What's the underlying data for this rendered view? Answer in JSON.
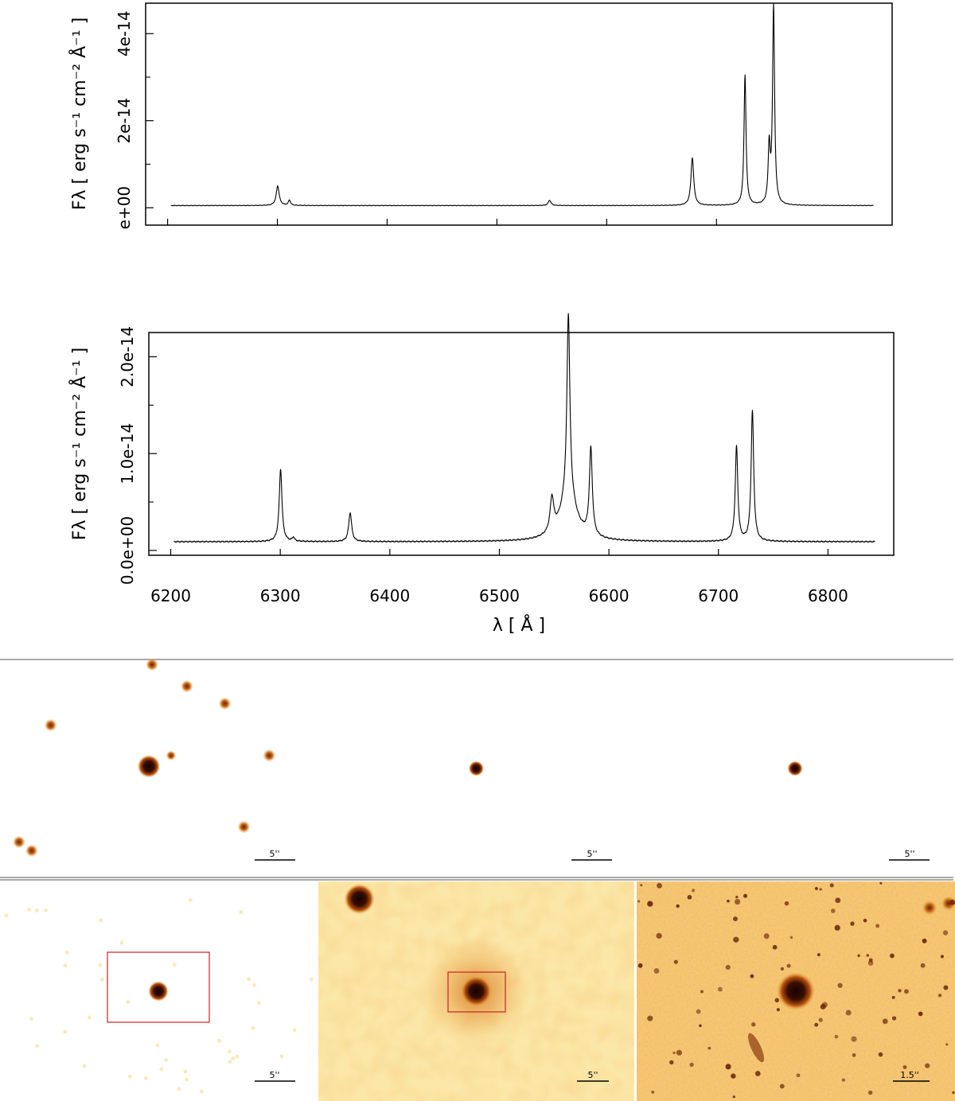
{
  "chart_data": [
    {
      "type": "line",
      "panel": "spectrum-top",
      "ylabel": "Fλ [ erg s⁻¹ cm⁻² Å⁻¹ ]",
      "xlim": [
        6180,
        6860
      ],
      "ylim": [
        -4e-15,
        4.7e-14
      ],
      "y_tick_labels": [
        "e+00",
        "2e-14",
        "4e-14"
      ],
      "y_tick_values": [
        0,
        2e-14,
        4e-14
      ],
      "y_minor_tick_values": [
        1e-14,
        3e-14
      ],
      "x_tick_values": [
        6200,
        6300,
        6400,
        6500,
        6600,
        6700
      ],
      "x_tick_labels_shown": false,
      "continuum": 5e-16,
      "lines": [
        {
          "center": 6300.3,
          "peak": 4.5e-15,
          "width": 1.6
        },
        {
          "center": 6311,
          "peak": 1.2e-15,
          "width": 1.2
        },
        {
          "center": 6548,
          "peak": 1.2e-15,
          "width": 1.5
        },
        {
          "center": 6678,
          "peak": 1.1e-14,
          "width": 1.5
        },
        {
          "center": 6726,
          "peak": 3e-14,
          "width": 1.1
        },
        {
          "center": 6748,
          "peak": 1.3e-14,
          "width": 1.1
        },
        {
          "center": 6752,
          "peak": 4.55e-14,
          "width": 1.1
        }
      ]
    },
    {
      "type": "line",
      "panel": "spectrum-bottom",
      "xlabel": "λ [ Å ]",
      "ylabel": "Fλ [ erg s⁻¹ cm⁻² Å⁻¹ ]",
      "xlim": [
        6180,
        6860
      ],
      "ylim": [
        -5e-16,
        2.25e-14
      ],
      "y_tick_labels": [
        "0.0e+00",
        "1.0e-14",
        "2.0e-14"
      ],
      "y_tick_values": [
        0,
        1e-14,
        2e-14
      ],
      "y_minor_tick_values": [
        5e-15,
        1.5e-14
      ],
      "x_tick_labels": [
        "6200",
        "6300",
        "6400",
        "6500",
        "6600",
        "6700",
        "6800"
      ],
      "x_tick_values": [
        6200,
        6300,
        6400,
        6500,
        6600,
        6700,
        6800
      ],
      "continuum": 9e-16,
      "lines": [
        {
          "center": 6300.3,
          "peak": 7.5e-15,
          "width": 1.5
        },
        {
          "center": 6312,
          "peak": 4e-16,
          "width": 1.2
        },
        {
          "center": 6363.8,
          "peak": 3e-15,
          "width": 1.6
        },
        {
          "center": 6548,
          "peak": 3.5e-15,
          "width": 2.0
        },
        {
          "center": 6563,
          "peak": 1.9e-14,
          "width": 1.6
        },
        {
          "center": 6563,
          "peak": 4.5e-15,
          "width": 9.0
        },
        {
          "center": 6583.5,
          "peak": 9e-15,
          "width": 1.6
        },
        {
          "center": 6716.5,
          "peak": 9.8e-15,
          "width": 1.4
        },
        {
          "center": 6731,
          "peak": 1.35e-14,
          "width": 1.4
        }
      ]
    }
  ],
  "images": [
    {
      "name": "image-row1-col1",
      "scalebar": "5''",
      "sources": [
        [
          0.47,
          0.49,
          9,
          1
        ],
        [
          0.54,
          0.44,
          4,
          0.8
        ],
        [
          0.16,
          0.3,
          5,
          0.8
        ],
        [
          0.59,
          0.12,
          5,
          0.8
        ],
        [
          0.71,
          0.2,
          5,
          0.8
        ],
        [
          0.85,
          0.44,
          5,
          0.8
        ],
        [
          0.77,
          0.77,
          5,
          0.8
        ],
        [
          0.06,
          0.84,
          5,
          0.8
        ],
        [
          0.1,
          0.88,
          5,
          0.8
        ],
        [
          0.48,
          0.02,
          5,
          0.8
        ]
      ]
    },
    {
      "name": "image-row1-col2",
      "scalebar": "5''",
      "sources": [
        [
          0.5,
          0.5,
          6,
          1
        ]
      ]
    },
    {
      "name": "image-row1-col3",
      "scalebar": "5''",
      "sources": [
        [
          0.5,
          0.5,
          6,
          1
        ]
      ]
    },
    {
      "name": "image-row2-col1",
      "scalebar": "5''",
      "sources": [
        [
          0.5,
          0.5,
          8,
          1
        ]
      ]
    },
    {
      "name": "image-row2-col2",
      "scalebar": "5''",
      "sources": [
        [
          0.5,
          0.5,
          12,
          1
        ],
        [
          0.13,
          0.08,
          12,
          1
        ]
      ]
    },
    {
      "name": "image-row2-col3",
      "scalebar": "1.5''",
      "sources": [
        [
          0.5,
          0.5,
          15,
          1
        ],
        [
          0.92,
          0.12,
          6,
          0.9
        ],
        [
          0.98,
          0.1,
          6,
          0.9
        ]
      ]
    }
  ],
  "colors": {
    "image_light": "#fffde8",
    "image_mid": "#f0a840",
    "image_dark": "#1a0500",
    "box": "#cc2222"
  }
}
